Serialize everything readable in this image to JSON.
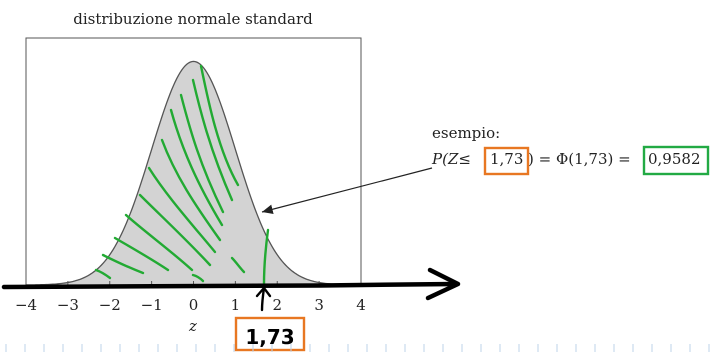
{
  "chart_data": {
    "type": "area",
    "title": "distribuzione normale standard",
    "xlabel": "z",
    "ylabel": "",
    "xlim": [
      -4,
      4
    ],
    "ylim": [
      0,
      0.43
    ],
    "x_ticks": [
      -4,
      -3,
      -2,
      -1,
      0,
      1,
      2,
      3,
      4
    ],
    "x_tick_labels": [
      "−4",
      "−3",
      "−2",
      "−1",
      "0",
      "1",
      "2",
      "3",
      "4"
    ],
    "grid": false,
    "series": [
      {
        "x": [
          -4,
          -3.5,
          -3,
          -2.5,
          -2,
          -1.5,
          -1,
          -0.5,
          0,
          0.5,
          1,
          1.5,
          2,
          2.5,
          3,
          3.5,
          4
        ],
        "y": [
          0.0001,
          0.0009,
          0.0044,
          0.0175,
          0.054,
          0.1295,
          0.242,
          0.3521,
          0.3989,
          0.3521,
          0.242,
          0.1295,
          0.054,
          0.0175,
          0.0044,
          0.0009,
          0.0001
        ]
      }
    ],
    "shaded_up_to": 1.73,
    "annotations": {
      "example_label": "esempio:",
      "formula_prefix": "P(Z≤",
      "formula_value": "1,73",
      "formula_middle": ") = Φ(1,73) =",
      "formula_result": "0,9582",
      "handwritten_value": "1,73"
    }
  },
  "colors": {
    "fill": "#d3d3d3",
    "curve": "#555555",
    "green_marks": "#22aa33",
    "orange_box": "#e87722",
    "green_box": "#22aa44",
    "axis_arrow": "#000000",
    "ruler_ticks": "#bcd3ea"
  }
}
